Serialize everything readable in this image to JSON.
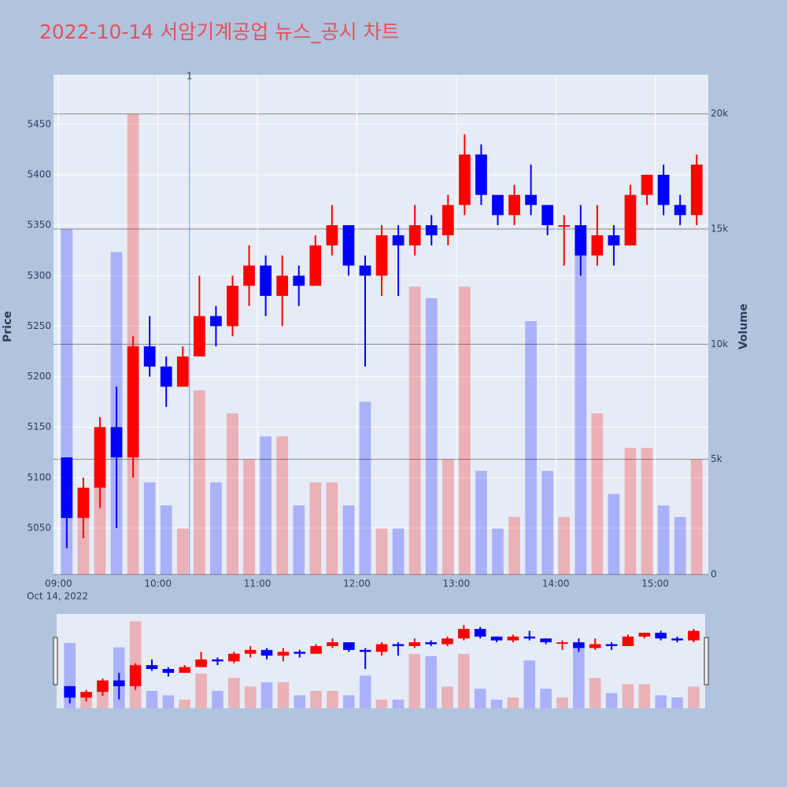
{
  "chart_data": {
    "type": "candlestick",
    "title": "2022-10-14 서암기계공업 뉴스_공시 차트",
    "y_label": "Price",
    "y2_label": "Volume",
    "x_date_label": "Oct 14, 2022",
    "x": [
      "09:00",
      "09:10",
      "09:20",
      "09:30",
      "09:40",
      "09:50",
      "10:00",
      "10:10",
      "10:20",
      "10:30",
      "10:40",
      "10:50",
      "11:00",
      "11:10",
      "11:20",
      "11:30",
      "11:40",
      "11:50",
      "12:00",
      "12:10",
      "12:20",
      "12:30",
      "12:40",
      "12:50",
      "13:00",
      "13:10",
      "13:20",
      "13:30",
      "13:40",
      "13:50",
      "14:00",
      "14:10",
      "14:20",
      "14:30",
      "14:40",
      "14:50",
      "15:00",
      "15:10",
      "15:20"
    ],
    "open": [
      5120,
      5060,
      5090,
      5150,
      5120,
      5230,
      5210,
      5190,
      5220,
      5260,
      5250,
      5290,
      5310,
      5280,
      5300,
      5290,
      5330,
      5350,
      5310,
      5300,
      5340,
      5330,
      5350,
      5340,
      5370,
      5420,
      5380,
      5360,
      5380,
      5370,
      5350,
      5350,
      5320,
      5340,
      5330,
      5380,
      5400,
      5370,
      5360
    ],
    "high": [
      5120,
      5100,
      5160,
      5190,
      5240,
      5260,
      5220,
      5230,
      5300,
      5270,
      5300,
      5330,
      5320,
      5320,
      5310,
      5340,
      5370,
      5350,
      5320,
      5350,
      5350,
      5370,
      5360,
      5380,
      5440,
      5430,
      5380,
      5390,
      5410,
      5370,
      5360,
      5370,
      5370,
      5350,
      5390,
      5400,
      5410,
      5380,
      5420
    ],
    "low": [
      5030,
      5040,
      5070,
      5050,
      5100,
      5200,
      5170,
      5190,
      5220,
      5230,
      5240,
      5270,
      5260,
      5250,
      5270,
      5290,
      5320,
      5300,
      5210,
      5280,
      5280,
      5320,
      5330,
      5330,
      5360,
      5370,
      5350,
      5350,
      5360,
      5340,
      5310,
      5300,
      5310,
      5310,
      5330,
      5370,
      5360,
      5350,
      5350
    ],
    "close": [
      5060,
      5090,
      5150,
      5120,
      5230,
      5210,
      5190,
      5220,
      5260,
      5250,
      5290,
      5310,
      5280,
      5300,
      5290,
      5330,
      5350,
      5310,
      5300,
      5340,
      5330,
      5350,
      5340,
      5370,
      5420,
      5380,
      5360,
      5380,
      5370,
      5350,
      5350,
      5320,
      5340,
      5330,
      5380,
      5400,
      5370,
      5360,
      5410
    ],
    "volume": [
      15000,
      3000,
      4500,
      14000,
      20000,
      4000,
      3000,
      2000,
      8000,
      4000,
      7000,
      5000,
      6000,
      6000,
      3000,
      4000,
      4000,
      3000,
      7500,
      2000,
      2000,
      12500,
      12000,
      5000,
      12500,
      4500,
      2000,
      2500,
      11000,
      4500,
      2500,
      14500,
      7000,
      3500,
      5500,
      5500,
      3000,
      2500,
      5000
    ],
    "increasing_color": "#ff0000",
    "decreasing_color": "#0000ff",
    "xlim": [
      "08:57",
      "15:32"
    ],
    "xticks": [
      "09:00",
      "10:00",
      "11:00",
      "12:00",
      "13:00",
      "14:00",
      "15:00"
    ],
    "ylim": [
      5004,
      5499
    ],
    "yticks": [
      5050,
      5100,
      5150,
      5200,
      5250,
      5300,
      5350,
      5400,
      5450
    ],
    "y2lim": [
      0,
      21700
    ],
    "y2ticks": [
      0,
      {
        "value": 5000,
        "label": "5k"
      },
      {
        "value": 10000,
        "label": "10k"
      },
      {
        "value": 15000,
        "label": "15k"
      },
      {
        "value": 20000,
        "label": "20k"
      }
    ],
    "annotations": [
      {
        "x": "10:19",
        "text": "1"
      }
    ],
    "rangeslider": true
  }
}
